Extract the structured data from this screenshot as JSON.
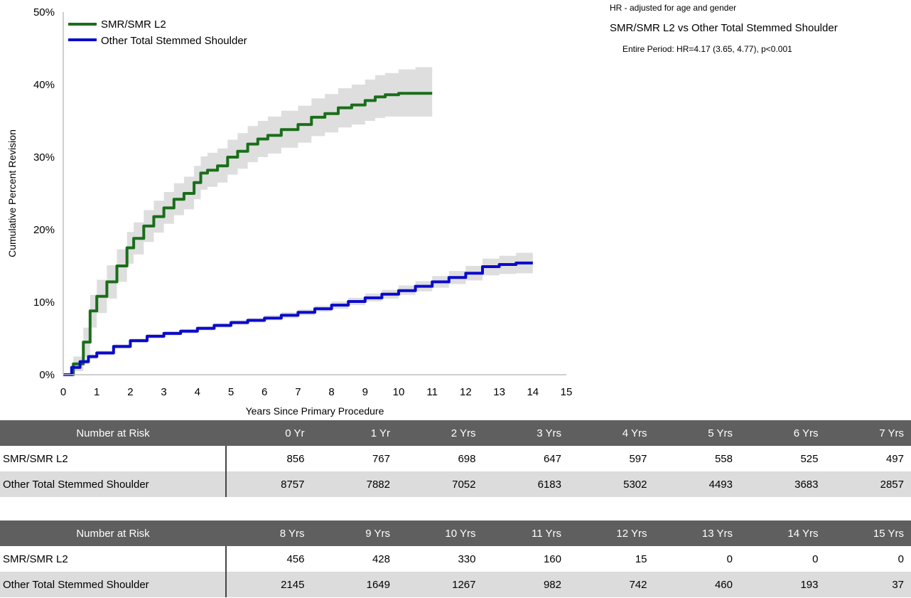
{
  "chart_data": {
    "type": "line",
    "title": "",
    "xlabel": "Years Since Primary Procedure",
    "ylabel": "Cumulative Percent Revision",
    "xlim": [
      0,
      15
    ],
    "ylim": [
      0,
      50
    ],
    "x_ticks": [
      "0",
      "1",
      "2",
      "3",
      "4",
      "5",
      "6",
      "7",
      "8",
      "9",
      "10",
      "11",
      "12",
      "13",
      "14",
      "15"
    ],
    "y_ticks": [
      "0%",
      "10%",
      "20%",
      "30%",
      "40%",
      "50%"
    ],
    "grid": false,
    "legend_position": "top-left",
    "series": [
      {
        "name": "SMR/SMR L2",
        "color": "#1a6e1a",
        "x": [
          0,
          0.3,
          0.6,
          0.8,
          1.0,
          1.3,
          1.6,
          1.9,
          2.1,
          2.4,
          2.7,
          3.0,
          3.3,
          3.6,
          3.9,
          4.1,
          4.3,
          4.6,
          4.9,
          5.2,
          5.5,
          5.8,
          6.1,
          6.5,
          7.0,
          7.4,
          7.8,
          8.2,
          8.6,
          9.0,
          9.3,
          9.6,
          10.0,
          10.5,
          11.0
        ],
        "y": [
          0,
          1.5,
          4.5,
          8.8,
          10.8,
          12.8,
          15.0,
          17.5,
          18.8,
          20.5,
          21.8,
          23.0,
          24.2,
          25.0,
          26.5,
          27.8,
          28.2,
          28.8,
          30.0,
          30.8,
          31.8,
          32.5,
          33.0,
          33.8,
          34.5,
          35.5,
          36.0,
          36.8,
          37.2,
          37.8,
          38.3,
          38.6,
          38.8,
          38.8,
          38.8
        ],
        "ci_lower": [
          0,
          0.5,
          2.5,
          6.5,
          8.5,
          10.5,
          12.8,
          15.3,
          16.6,
          18.3,
          19.6,
          20.8,
          22.0,
          22.8,
          24.2,
          25.5,
          25.9,
          26.5,
          27.6,
          28.4,
          29.3,
          30.0,
          30.5,
          31.3,
          32.0,
          32.9,
          33.4,
          34.1,
          34.5,
          35.0,
          35.4,
          35.6,
          35.6,
          35.6,
          35.6
        ],
        "ci_upper": [
          0,
          2.5,
          6.5,
          11.0,
          13.1,
          15.1,
          17.3,
          19.7,
          21.0,
          22.7,
          24.0,
          25.2,
          26.4,
          27.3,
          28.8,
          30.1,
          30.6,
          31.2,
          32.4,
          33.3,
          34.3,
          35.0,
          35.6,
          36.4,
          37.1,
          38.1,
          38.7,
          39.5,
          40.0,
          40.7,
          41.3,
          41.6,
          42.1,
          42.4,
          42.4
        ]
      },
      {
        "name": "Other Total Stemmed Shoulder",
        "color": "#0a0acc",
        "x": [
          0,
          0.25,
          0.5,
          0.75,
          1.0,
          1.5,
          2.0,
          2.5,
          3.0,
          3.5,
          4.0,
          4.5,
          5.0,
          5.5,
          6.0,
          6.5,
          7.0,
          7.5,
          8.0,
          8.5,
          9.0,
          9.5,
          10.0,
          10.5,
          11.0,
          11.5,
          12.0,
          12.5,
          13.0,
          13.5,
          14.0
        ],
        "y": [
          0,
          1.0,
          1.8,
          2.5,
          3.0,
          3.9,
          4.7,
          5.3,
          5.7,
          6.0,
          6.4,
          6.8,
          7.2,
          7.5,
          7.8,
          8.2,
          8.6,
          9.1,
          9.6,
          10.1,
          10.6,
          11.1,
          11.6,
          12.2,
          12.8,
          13.4,
          14.0,
          14.9,
          15.2,
          15.4,
          15.4
        ],
        "ci_lower": [
          0,
          0.8,
          1.5,
          2.2,
          2.7,
          3.6,
          4.4,
          5.0,
          5.4,
          5.7,
          6.1,
          6.5,
          6.9,
          7.2,
          7.5,
          7.8,
          8.2,
          8.7,
          9.1,
          9.6,
          10.1,
          10.5,
          11.0,
          11.5,
          12.0,
          12.5,
          13.0,
          13.7,
          13.9,
          14.0,
          14.0
        ],
        "ci_upper": [
          0,
          1.2,
          2.1,
          2.8,
          3.3,
          4.2,
          5.0,
          5.6,
          6.0,
          6.3,
          6.7,
          7.1,
          7.5,
          7.8,
          8.2,
          8.6,
          9.0,
          9.5,
          10.1,
          10.6,
          11.2,
          11.7,
          12.3,
          12.9,
          13.6,
          14.3,
          15.0,
          16.0,
          16.4,
          16.8,
          16.9
        ]
      }
    ]
  },
  "annotations": {
    "hr_note": "HR - adjusted for age and gender",
    "comparison": "SMR/SMR L2 vs Other Total Stemmed Shoulder",
    "entire_period": "Entire Period: HR=4.17 (3.65, 4.77), p<0.001"
  },
  "risk_tables": [
    {
      "header": "Number at Risk",
      "columns": [
        "0 Yr",
        "1 Yr",
        "2 Yrs",
        "3 Yrs",
        "4 Yrs",
        "5 Yrs",
        "6 Yrs",
        "7 Yrs"
      ],
      "rows": [
        {
          "name": "SMR/SMR L2",
          "values": [
            "856",
            "767",
            "698",
            "647",
            "597",
            "558",
            "525",
            "497"
          ]
        },
        {
          "name": "Other Total Stemmed Shoulder",
          "values": [
            "8757",
            "7882",
            "7052",
            "6183",
            "5302",
            "4493",
            "3683",
            "2857"
          ]
        }
      ]
    },
    {
      "header": "Number at Risk",
      "columns": [
        "8 Yrs",
        "9 Yrs",
        "10 Yrs",
        "11 Yrs",
        "12 Yrs",
        "13 Yrs",
        "14 Yrs",
        "15 Yrs"
      ],
      "rows": [
        {
          "name": "SMR/SMR L2",
          "values": [
            "456",
            "428",
            "330",
            "160",
            "15",
            "0",
            "0",
            "0"
          ]
        },
        {
          "name": "Other Total Stemmed Shoulder",
          "values": [
            "2145",
            "1649",
            "1267",
            "982",
            "742",
            "460",
            "193",
            "37"
          ]
        }
      ]
    }
  ]
}
